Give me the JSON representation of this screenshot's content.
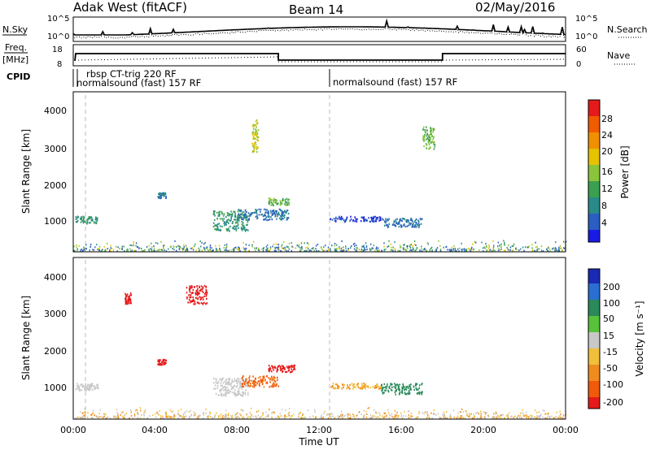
{
  "header": {
    "station": "Adak West (fitACF)",
    "beam": "Beam 14",
    "date": "02/May/2016"
  },
  "noise_panel": {
    "left_label": "N.Sky",
    "right_label": "N.Search",
    "left_ticks": [
      "10^5",
      "10^0"
    ],
    "right_ticks": [
      "10^5",
      "10^0"
    ]
  },
  "freq_panel": {
    "left_label_1": "Freq.",
    "left_label_2": "[MHz]",
    "left_ticks": [
      "18",
      "8"
    ],
    "right_ticks": [
      "60",
      "0"
    ],
    "right_label": "Nave"
  },
  "cpid_panel": {
    "label": "CPID",
    "entries": [
      "rbsp CT-trig 220 RF",
      "normalsound (fast) 157 RF",
      "normalsound (fast) 157 RF"
    ]
  },
  "power_panel": {
    "ylabel": "Slant Range [km]",
    "yticks": [
      "4000",
      "3000",
      "2000",
      "1000"
    ],
    "colorbar_label": "Power [dB]",
    "colorbar_ticks": [
      "28",
      "24",
      "20",
      "16",
      "12",
      "8",
      "4"
    ],
    "colors": [
      "#1a1ae6",
      "#2a5ec2",
      "#2a8a8a",
      "#3aa050",
      "#8ac43a",
      "#e6c200",
      "#f09000",
      "#f05a00",
      "#e61a1a"
    ]
  },
  "velocity_panel": {
    "ylabel": "Slant Range [km]",
    "yticks": [
      "4000",
      "3000",
      "2000",
      "1000"
    ],
    "colorbar_label": "Velocity [m s⁻¹]",
    "colorbar_ticks": [
      "200",
      "100",
      "50",
      "15",
      "-15",
      "-50",
      "-100",
      "-200"
    ],
    "colors": [
      "#1a2ab4",
      "#2a6ed2",
      "#2a8a5a",
      "#58c23a",
      "#c8c8c8",
      "#f0c03a",
      "#f08c1e",
      "#f05a0a",
      "#e61a1a"
    ]
  },
  "xaxis": {
    "ticks": [
      "00:00",
      "04:00",
      "08:00",
      "12:00",
      "16:00",
      "20:00",
      "00:00"
    ],
    "label": "Time UT"
  },
  "chart_data": {
    "type": "heatmap",
    "x_range_hours": [
      0,
      24
    ],
    "y_range_km": [
      180,
      4500
    ],
    "power_clusters": [
      {
        "t0": 0.1,
        "t1": 1.2,
        "r0": 950,
        "r1": 1150,
        "power_db": 12
      },
      {
        "t0": 4.1,
        "t1": 4.5,
        "r0": 1650,
        "r1": 1800,
        "power_db": 8
      },
      {
        "t0": 6.8,
        "t1": 8.5,
        "r0": 750,
        "r1": 1300,
        "power_db": 12
      },
      {
        "t0": 8.0,
        "t1": 10.5,
        "r0": 1050,
        "r1": 1350,
        "power_db": 8
      },
      {
        "t0": 9.5,
        "t1": 10.5,
        "r0": 1450,
        "r1": 1650,
        "power_db": 16
      },
      {
        "t0": 12.5,
        "t1": 15.0,
        "r0": 1000,
        "r1": 1150,
        "power_db": 4
      },
      {
        "t0": 15.0,
        "t1": 17.0,
        "r0": 850,
        "r1": 1100,
        "power_db": 8
      },
      {
        "t0": 8.7,
        "t1": 9.0,
        "r0": 2900,
        "r1": 3800,
        "power_db": 20
      },
      {
        "t0": 17.0,
        "t1": 17.6,
        "r0": 3000,
        "r1": 3600,
        "power_db": 16
      }
    ],
    "velocity_clusters": [
      {
        "t0": 0.1,
        "t1": 1.2,
        "r0": 950,
        "r1": 1150,
        "vel": 0
      },
      {
        "t0": 4.1,
        "t1": 4.5,
        "r0": 1650,
        "r1": 1800,
        "vel": -200
      },
      {
        "t0": 6.8,
        "t1": 8.5,
        "r0": 800,
        "r1": 1300,
        "vel": 0
      },
      {
        "t0": 8.2,
        "t1": 10.0,
        "r0": 1050,
        "r1": 1350,
        "vel": -80
      },
      {
        "t0": 9.5,
        "t1": 10.8,
        "r0": 1450,
        "r1": 1650,
        "vel": -200
      },
      {
        "t0": 12.5,
        "t1": 15.0,
        "r0": 1000,
        "r1": 1150,
        "vel": -30
      },
      {
        "t0": 15.0,
        "t1": 17.0,
        "r0": 850,
        "r1": 1150,
        "vel": 40
      },
      {
        "t0": 2.5,
        "t1": 2.8,
        "r0": 3300,
        "r1": 3600,
        "vel": -200
      },
      {
        "t0": 5.5,
        "t1": 6.5,
        "r0": 3300,
        "r1": 3800,
        "vel": -200
      }
    ]
  }
}
